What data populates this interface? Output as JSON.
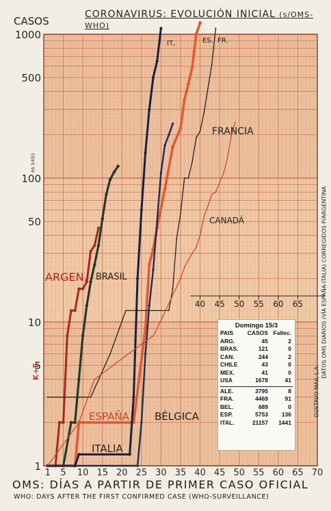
{
  "chart_data": {
    "type": "line",
    "title": "CORONAVIRUS: EVOLUCIÓN INICIAL",
    "title_note": "(s/OMS-WHO)",
    "y_axis_label": "CASOS",
    "y_scale": "log",
    "ylim": [
      1,
      1000
    ],
    "xlim": [
      0,
      70
    ],
    "x_ticks": [
      1,
      5,
      10,
      15,
      20,
      25,
      30,
      35,
      40,
      45,
      50,
      55,
      60,
      65,
      70
    ],
    "y_tick_labels": [
      {
        "v": 1000,
        "t": "1000"
      },
      {
        "v": 500,
        "t": "500"
      },
      {
        "v": 100,
        "t": "100"
      },
      {
        "v": 50,
        "t": "50"
      },
      {
        "v": 10,
        "t": "10"
      },
      {
        "v": 5,
        "t": "5"
      },
      {
        "v": 1,
        "t": "1"
      }
    ],
    "inset_axis_labels": [
      "40",
      "45",
      "50",
      "55",
      "60",
      "65"
    ],
    "xlabel_es": "OMS: DÍAS A PARTIR DE PRIMER CASO OFICIAL",
    "xlabel_en": "WHO: DAYS AFTER THE FIRST CONFIRMED CASE (WHO-SURVEILLANCE)",
    "grid": true,
    "series": [
      {
        "name": "ARGEN.",
        "color": "#a52a1c",
        "x": [
          1,
          3,
          4,
          5,
          6,
          7,
          8,
          9,
          10,
          11,
          12,
          13,
          14
        ],
        "y": [
          1,
          1,
          2,
          2,
          8,
          12,
          12,
          17,
          17,
          19,
          31,
          34,
          45
        ]
      },
      {
        "name": "BRASIL",
        "color": "#223a2c",
        "x": [
          1,
          3,
          5,
          7,
          8,
          9,
          10,
          11,
          12,
          13,
          14,
          15,
          16,
          17,
          18,
          19
        ],
        "y": [
          1,
          1,
          1,
          2,
          2,
          4,
          8,
          13,
          19,
          25,
          34,
          52,
          77,
          98,
          110,
          121
        ]
      },
      {
        "name": "ESPAÑA",
        "color": "#e15a33",
        "x": [
          1,
          8,
          9,
          23,
          26,
          27,
          28,
          29,
          31,
          33,
          35,
          36,
          37,
          38,
          39,
          40
        ],
        "y": [
          1,
          1,
          2,
          2,
          9,
          25,
          32,
          45,
          84,
          165,
          222,
          350,
          450,
          589,
          1000,
          1200
        ]
      },
      {
        "name": "ITALIA",
        "color": "#16203f",
        "x": [
          1,
          8,
          9,
          22,
          23,
          24,
          25,
          26,
          27,
          28,
          29,
          30
        ],
        "y": [
          1,
          1,
          1.2,
          1.2,
          3,
          20,
          60,
          150,
          300,
          500,
          650,
          1100
        ]
      },
      {
        "name": "FRANCIA",
        "color": "#222222",
        "x": [
          1,
          12,
          17,
          21,
          32,
          33,
          34,
          35,
          36,
          37,
          38,
          39,
          40,
          41,
          42,
          43,
          44
        ],
        "y": [
          3,
          3,
          6,
          12,
          12,
          17,
          38,
          57,
          100,
          100,
          130,
          191,
          212,
          285,
          420,
          613,
          1100
        ]
      },
      {
        "name": "BÉLGICA",
        "color": "#1f2a55",
        "x": [
          1,
          24,
          25,
          26,
          27,
          28,
          29,
          30,
          31,
          32,
          33
        ],
        "y": [
          1,
          1,
          2,
          6,
          13,
          23,
          50,
          109,
          169,
          200,
          239
        ]
      },
      {
        "name": "CANADÁ",
        "color": "#c9432a",
        "x": [
          1,
          9,
          13,
          25,
          28,
          29,
          35,
          36,
          37,
          38,
          39,
          40,
          41,
          42,
          43,
          44,
          45,
          46,
          47,
          48,
          49
        ],
        "y": [
          1,
          2,
          4,
          7,
          8,
          9,
          20,
          24,
          27,
          30,
          33,
          40,
          54,
          64,
          77,
          80,
          93,
          108,
          138,
          198,
          244
        ]
      }
    ],
    "annotations": {
      "it": "IT,",
      "es": "ES.",
      "fr": "FR."
    }
  },
  "table": {
    "title": "Domingo 15/3",
    "headers": [
      "PAIS",
      "CASOS",
      "Fallec."
    ],
    "rows_a": [
      [
        "ARG.",
        "45",
        "2"
      ],
      [
        "BRAS.",
        "121",
        "0"
      ],
      [
        "CAN.",
        "244",
        "2"
      ],
      [
        "CHILE",
        "43",
        "0"
      ],
      [
        "MEX.",
        "41",
        "0"
      ],
      [
        "USA",
        "1678",
        "41"
      ]
    ],
    "rows_b": [
      [
        "ALE.",
        "3795",
        "8"
      ],
      [
        "FRA.",
        "4469",
        "91"
      ],
      [
        "BEL.",
        "689",
        "0"
      ],
      [
        "ESP.",
        "5753",
        "136"
      ],
      [
        "ITAL.",
        "21157",
        "1441"
      ]
    ]
  },
  "margin": {
    "right_note": "DATOS OMS DIARIOS (VÍA ESPAÑA-ITALIA) CORREGIDOS P/ARGENTINA",
    "signature": "GUSTAVO MAIL L.A.",
    "paper_code": "46 5493",
    "brand": "K+E"
  }
}
